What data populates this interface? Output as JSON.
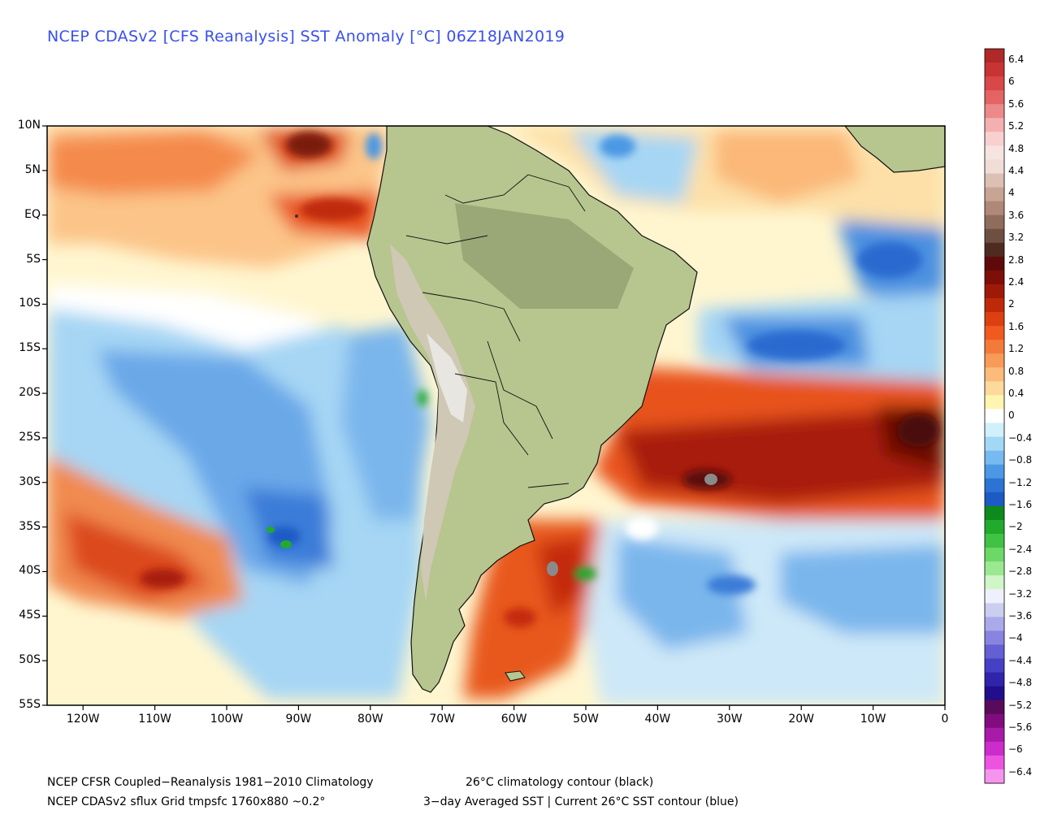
{
  "title": "NCEP CDASv2 [CFS Reanalysis] SST Anomaly [°C] 06Z18JAN2019",
  "map": {
    "lat_labels": [
      "10N",
      "5N",
      "EQ",
      "5S",
      "10S",
      "15S",
      "20S",
      "25S",
      "30S",
      "35S",
      "40S",
      "45S",
      "50S",
      "55S"
    ],
    "lon_labels": [
      "120W",
      "110W",
      "100W",
      "90W",
      "80W",
      "70W",
      "60W",
      "50W",
      "40W",
      "30W",
      "20W",
      "10W",
      "0"
    ],
    "lat_range": [
      -55,
      10
    ],
    "lon_range": [
      -125,
      0
    ],
    "land_color": "#b7c58f",
    "andes_color": "#d6d0c0"
  },
  "colorbar": {
    "labels": [
      "6.4",
      "6",
      "5.6",
      "5.2",
      "4.8",
      "4.4",
      "4",
      "3.6",
      "3.2",
      "2.8",
      "2.4",
      "2",
      "1.6",
      "1.2",
      "0.8",
      "0.4",
      "0",
      "−0.4",
      "−0.8",
      "−1.2",
      "−1.6",
      "−2",
      "−2.4",
      "−2.8",
      "−3.2",
      "−3.6",
      "−4",
      "−4.4",
      "−4.8",
      "−5.2",
      "−5.6",
      "−6",
      "−6.4"
    ],
    "colors": [
      "#b02828",
      "#c83434",
      "#d84848",
      "#e46464",
      "#ec8a8a",
      "#f4b0b0",
      "#f8d0d0",
      "#f6e4e0",
      "#f0ddd6",
      "#dcc0b4",
      "#c8a494",
      "#b08878",
      "#906c5c",
      "#6e5042",
      "#502a20",
      "#5e0a0a",
      "#7e0e08",
      "#9e1a08",
      "#be2a08",
      "#dc4010",
      "#f05a1e",
      "#f47a3c",
      "#f89a58",
      "#fbbb7a",
      "#fdda9c",
      "#fef5b0",
      "#ffffff",
      "#d0f0fc",
      "#a2d8f6",
      "#76baf0",
      "#4c98e4",
      "#2c74d4",
      "#1c5ac4",
      "#0c8a1c",
      "#22aa2c",
      "#40c244",
      "#6cd866",
      "#9ce892",
      "#d0f6c8",
      "#f0f0fc",
      "#cccef0",
      "#aaaaea",
      "#8884e0",
      "#6460d4",
      "#4640c4",
      "#3024aa",
      "#220e8a",
      "#5a0a5a",
      "#800c80",
      "#a81aa8",
      "#cc2ccc",
      "#ec54e0",
      "#f494ec"
    ]
  },
  "footer": {
    "line1_left": "NCEP CFSR Coupled−Reanalysis 1981−2010 Climatology",
    "line1_right": "26°C climatology contour (black)",
    "line2_left": "NCEP CDASv2 sflux Grid tmpsfc 1760x880 ~0.2°",
    "line2_right": "3−day Averaged SST | Current 26°C SST contour (blue)"
  }
}
